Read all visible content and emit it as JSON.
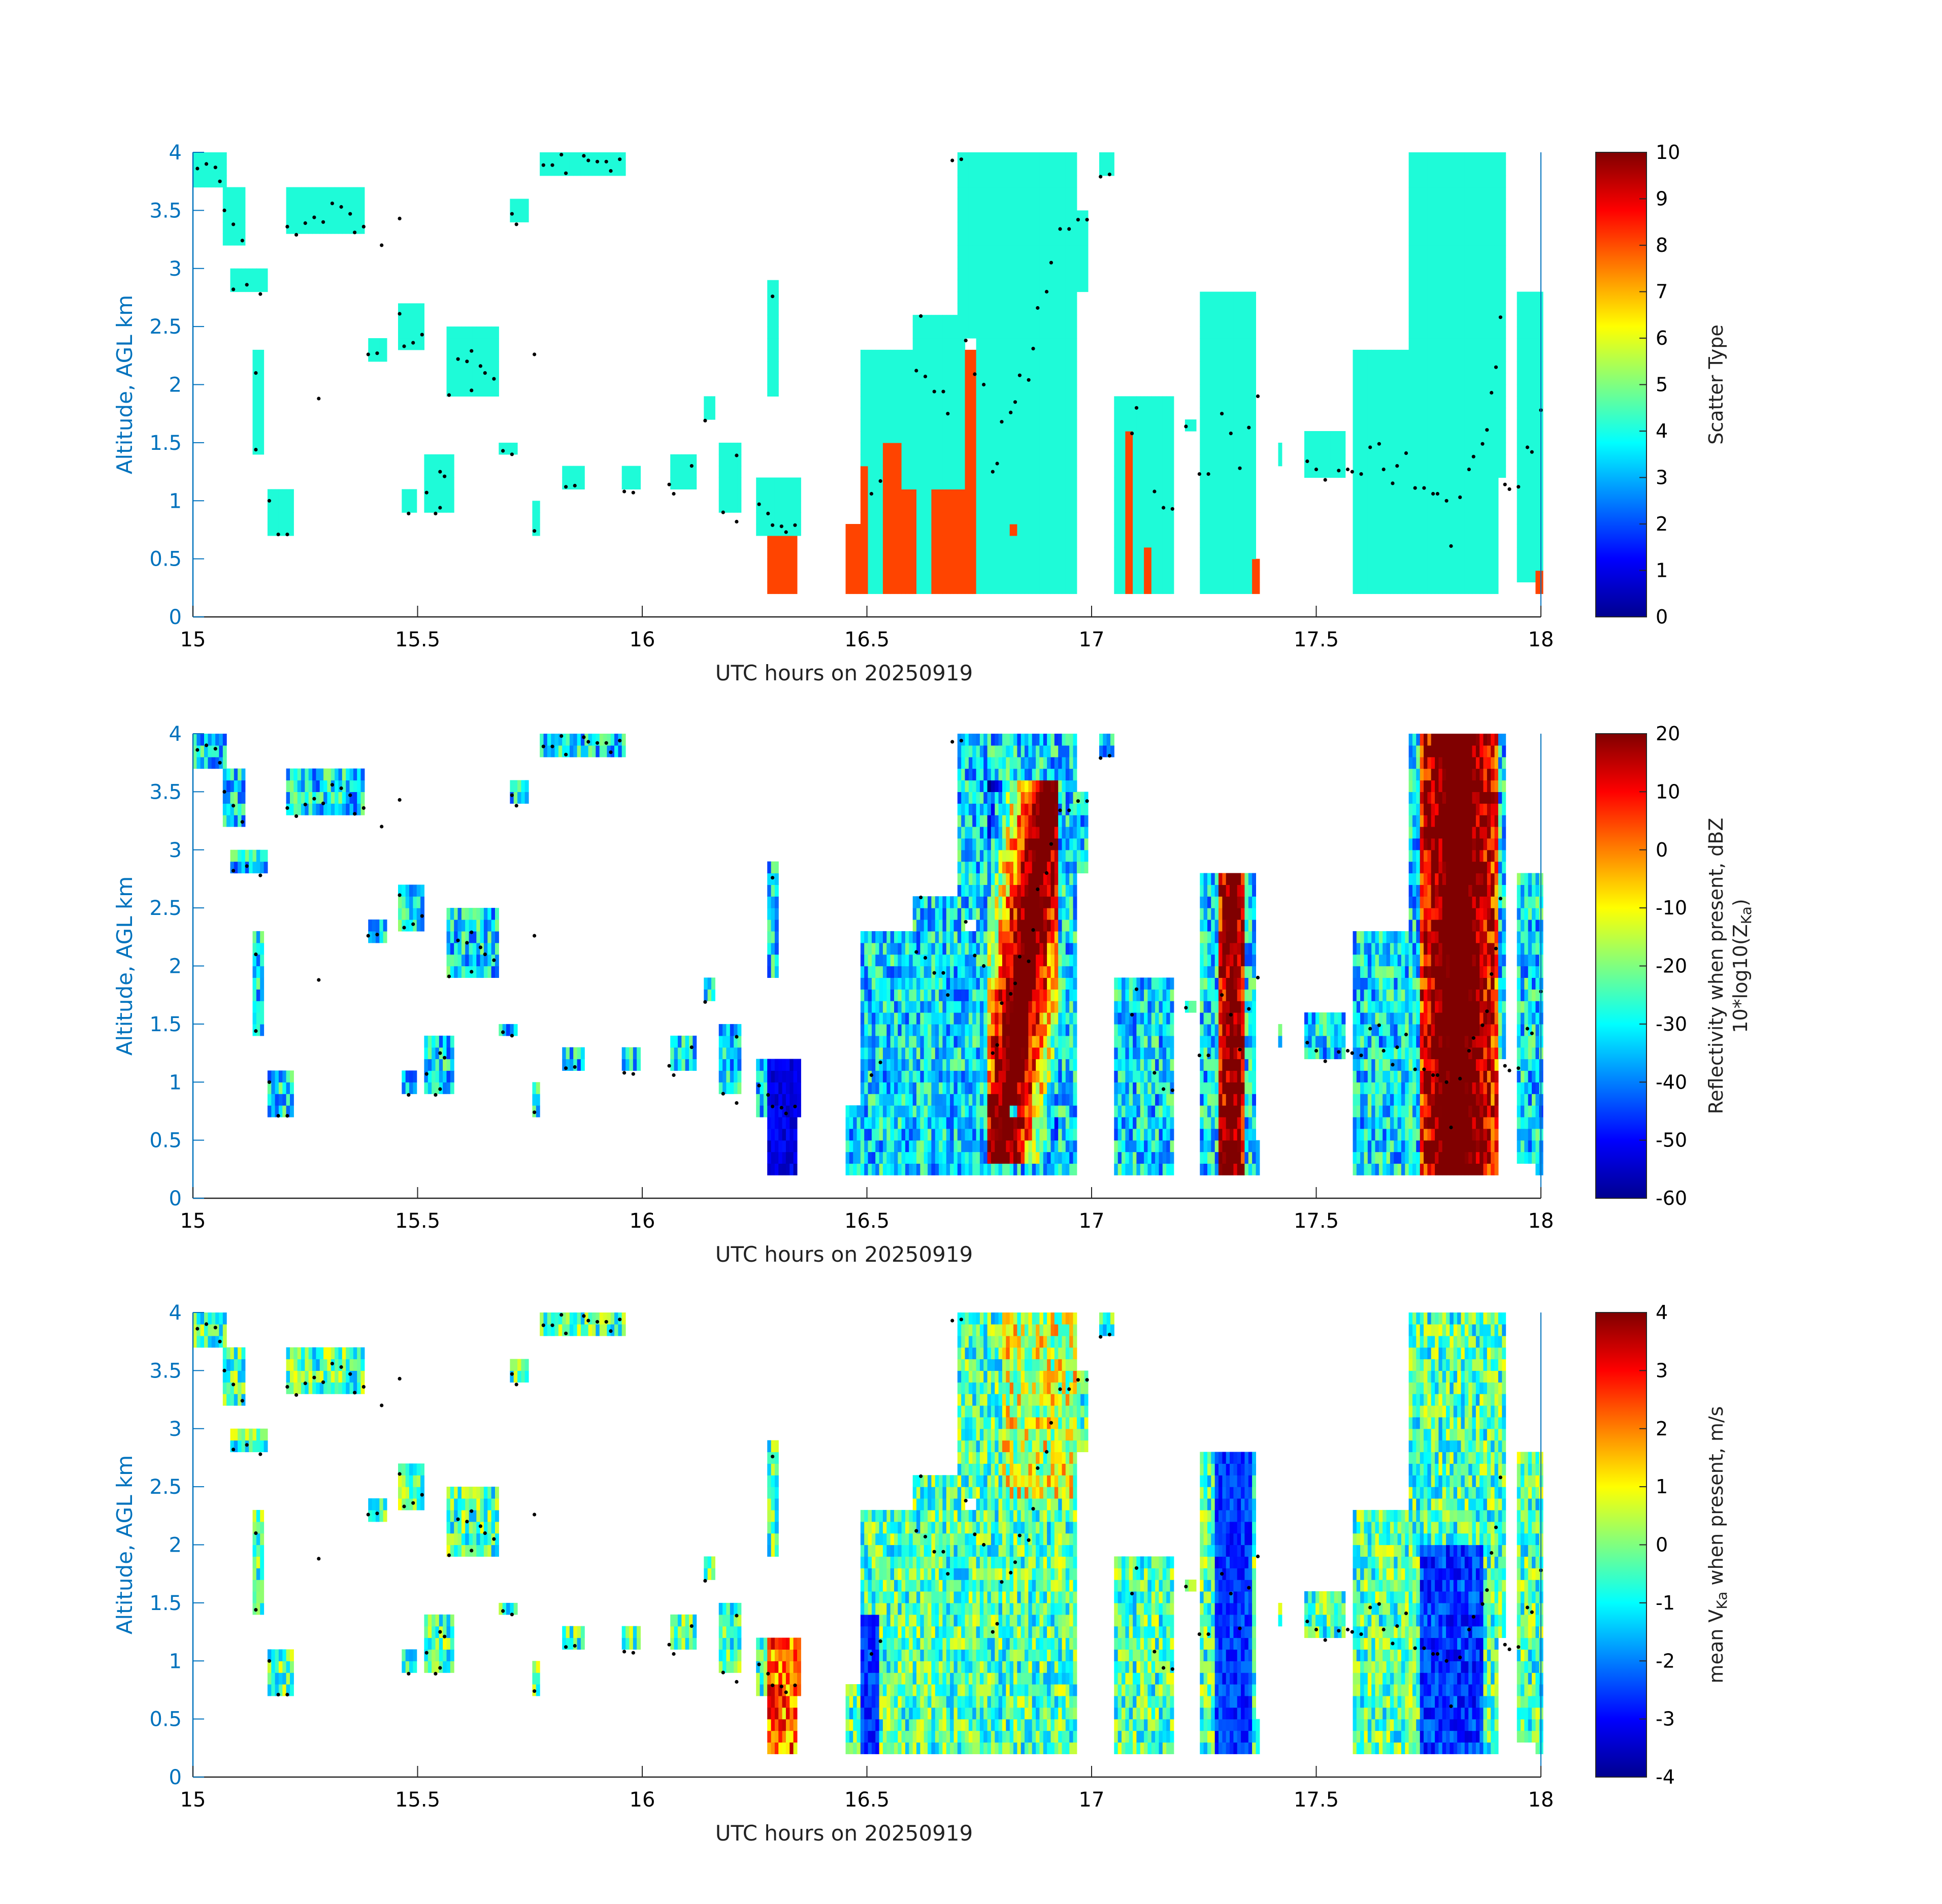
{
  "chart_data": [
    {
      "type": "heatmap",
      "xlabel": "UTC hours on 20250919",
      "ylabel": "Altitude, AGL km",
      "xlim": [
        15,
        18
      ],
      "ylim": [
        0,
        4
      ],
      "xticks": [
        "15",
        "15.5",
        "16",
        "16.5",
        "17",
        "17.5",
        "18"
      ],
      "yticks": [
        "0",
        "0.5",
        "1",
        "1.5",
        "2",
        "2.5",
        "3",
        "3.5",
        "4"
      ],
      "colorbar": {
        "label": "Scatter Type",
        "label2": "",
        "range": [
          0,
          10
        ],
        "ticks": [
          "0",
          "1",
          "2",
          "3",
          "4",
          "5",
          "6",
          "7",
          "8",
          "9",
          "10"
        ]
      },
      "field": "scatter"
    },
    {
      "type": "heatmap",
      "xlabel": "UTC hours on 20250919",
      "ylabel": "Altitude, AGL km",
      "xlim": [
        15,
        18
      ],
      "ylim": [
        0,
        4
      ],
      "xticks": [
        "15",
        "15.5",
        "16",
        "16.5",
        "17",
        "17.5",
        "18"
      ],
      "yticks": [
        "0",
        "0.5",
        "1",
        "1.5",
        "2",
        "2.5",
        "3",
        "3.5",
        "4"
      ],
      "colorbar": {
        "label": "Reflectivity when present, dBZ",
        "label2": "10*log10(Z",
        "label2_sub": "Ka",
        "label2_end": ")",
        "range": [
          -60,
          20
        ],
        "ticks": [
          "-60",
          "-50",
          "-40",
          "-30",
          "-20",
          "-10",
          "0",
          "10",
          "20"
        ]
      },
      "field": "reflectivity"
    },
    {
      "type": "heatmap",
      "xlabel": "UTC hours on 20250919",
      "ylabel": "Altitude, AGL km",
      "xlim": [
        15,
        18
      ],
      "ylim": [
        0,
        4
      ],
      "xticks": [
        "15",
        "15.5",
        "16",
        "16.5",
        "17",
        "17.5",
        "18"
      ],
      "yticks": [
        "0",
        "0.5",
        "1",
        "1.5",
        "2",
        "2.5",
        "3",
        "3.5",
        "4"
      ],
      "colorbar": {
        "label": "mean V",
        "label_sub": "Ka",
        "label_end": " when present, m/s",
        "range": [
          -4,
          4
        ],
        "ticks": [
          "-4",
          "-3",
          "-2",
          "-1",
          "0",
          "1",
          "2",
          "3",
          "4"
        ]
      },
      "field": "velocity"
    }
  ],
  "scatter_points": [
    [
      15.01,
      3.86
    ],
    [
      15.03,
      3.9
    ],
    [
      15.05,
      3.87
    ],
    [
      15.06,
      3.75
    ],
    [
      15.07,
      3.5
    ],
    [
      15.09,
      3.38
    ],
    [
      15.11,
      3.24
    ],
    [
      15.09,
      2.82
    ],
    [
      15.12,
      2.86
    ],
    [
      15.15,
      2.78
    ],
    [
      15.14,
      2.1
    ],
    [
      15.14,
      1.44
    ],
    [
      15.17,
      1.0
    ],
    [
      15.19,
      0.71
    ],
    [
      15.21,
      0.71
    ],
    [
      15.21,
      3.36
    ],
    [
      15.23,
      3.29
    ],
    [
      15.25,
      3.39
    ],
    [
      15.27,
      3.44
    ],
    [
      15.28,
      1.88
    ],
    [
      15.29,
      3.4
    ],
    [
      15.31,
      3.56
    ],
    [
      15.33,
      3.53
    ],
    [
      15.35,
      3.47
    ],
    [
      15.36,
      3.31
    ],
    [
      15.38,
      3.36
    ],
    [
      15.39,
      2.26
    ],
    [
      15.41,
      2.27
    ],
    [
      15.42,
      3.2
    ],
    [
      15.46,
      3.43
    ],
    [
      15.46,
      2.61
    ],
    [
      15.47,
      2.33
    ],
    [
      15.48,
      0.89
    ],
    [
      15.49,
      2.36
    ],
    [
      15.51,
      2.43
    ],
    [
      15.52,
      1.07
    ],
    [
      15.54,
      0.89
    ],
    [
      15.55,
      0.94
    ],
    [
      15.55,
      1.25
    ],
    [
      15.56,
      1.21
    ],
    [
      15.57,
      1.91
    ],
    [
      15.59,
      2.22
    ],
    [
      15.61,
      2.2
    ],
    [
      15.62,
      2.29
    ],
    [
      15.62,
      1.95
    ],
    [
      15.64,
      2.16
    ],
    [
      15.65,
      2.1
    ],
    [
      15.67,
      2.05
    ],
    [
      15.69,
      1.43
    ],
    [
      15.71,
      1.4
    ],
    [
      15.71,
      3.47
    ],
    [
      15.72,
      3.38
    ],
    [
      15.76,
      2.26
    ],
    [
      15.76,
      0.74
    ],
    [
      15.78,
      3.89
    ],
    [
      15.8,
      3.89
    ],
    [
      15.82,
      3.98
    ],
    [
      15.83,
      3.82
    ],
    [
      15.83,
      1.12
    ],
    [
      15.85,
      1.13
    ],
    [
      15.87,
      3.97
    ],
    [
      15.88,
      3.93
    ],
    [
      15.9,
      3.92
    ],
    [
      15.92,
      3.92
    ],
    [
      15.93,
      3.84
    ],
    [
      15.95,
      3.94
    ],
    [
      15.96,
      1.08
    ],
    [
      15.98,
      1.07
    ],
    [
      16.06,
      1.14
    ],
    [
      16.07,
      1.06
    ],
    [
      16.11,
      1.3
    ],
    [
      16.14,
      1.69
    ],
    [
      16.18,
      0.9
    ],
    [
      16.21,
      0.82
    ],
    [
      16.21,
      1.39
    ],
    [
      16.26,
      0.97
    ],
    [
      16.28,
      0.89
    ],
    [
      16.29,
      0.79
    ],
    [
      16.29,
      2.76
    ],
    [
      16.31,
      0.78
    ],
    [
      16.32,
      0.73
    ],
    [
      16.34,
      0.79
    ],
    [
      16.51,
      1.06
    ],
    [
      16.53,
      1.17
    ],
    [
      16.61,
      2.12
    ],
    [
      16.62,
      2.59
    ],
    [
      16.63,
      2.07
    ],
    [
      16.65,
      1.94
    ],
    [
      16.67,
      1.94
    ],
    [
      16.68,
      1.75
    ],
    [
      16.69,
      3.93
    ],
    [
      16.71,
      3.94
    ],
    [
      16.72,
      2.38
    ],
    [
      16.74,
      2.09
    ],
    [
      16.76,
      2.0
    ],
    [
      16.78,
      1.25
    ],
    [
      16.79,
      1.32
    ],
    [
      16.8,
      1.68
    ],
    [
      16.82,
      1.76
    ],
    [
      16.83,
      1.85
    ],
    [
      16.84,
      2.08
    ],
    [
      16.86,
      2.04
    ],
    [
      16.87,
      2.31
    ],
    [
      16.88,
      2.66
    ],
    [
      16.9,
      2.8
    ],
    [
      16.91,
      3.05
    ],
    [
      16.93,
      3.34
    ],
    [
      16.95,
      3.34
    ],
    [
      16.97,
      3.42
    ],
    [
      16.99,
      3.42
    ],
    [
      17.02,
      3.79
    ],
    [
      17.04,
      3.81
    ],
    [
      17.09,
      1.58
    ],
    [
      17.1,
      1.8
    ],
    [
      17.14,
      1.08
    ],
    [
      17.16,
      0.94
    ],
    [
      17.18,
      0.93
    ],
    [
      17.21,
      1.64
    ],
    [
      17.24,
      1.23
    ],
    [
      17.26,
      1.23
    ],
    [
      17.29,
      1.75
    ],
    [
      17.31,
      1.58
    ],
    [
      17.33,
      1.28
    ],
    [
      17.35,
      1.63
    ],
    [
      17.37,
      1.9
    ],
    [
      17.48,
      1.34
    ],
    [
      17.5,
      1.27
    ],
    [
      17.52,
      1.18
    ],
    [
      17.55,
      1.26
    ],
    [
      17.57,
      1.27
    ],
    [
      17.58,
      1.25
    ],
    [
      17.6,
      1.23
    ],
    [
      17.62,
      1.46
    ],
    [
      17.64,
      1.49
    ],
    [
      17.65,
      1.27
    ],
    [
      17.67,
      1.15
    ],
    [
      17.68,
      1.3
    ],
    [
      17.7,
      1.41
    ],
    [
      17.72,
      1.11
    ],
    [
      17.74,
      1.11
    ],
    [
      17.76,
      1.06
    ],
    [
      17.77,
      1.06
    ],
    [
      17.79,
      1.0
    ],
    [
      17.8,
      0.61
    ],
    [
      17.82,
      1.03
    ],
    [
      17.84,
      1.27
    ],
    [
      17.85,
      1.38
    ],
    [
      17.87,
      1.49
    ],
    [
      17.88,
      1.61
    ],
    [
      17.89,
      1.93
    ],
    [
      17.9,
      2.15
    ],
    [
      17.91,
      2.58
    ],
    [
      17.92,
      1.14
    ],
    [
      17.93,
      1.1
    ],
    [
      17.95,
      1.12
    ],
    [
      17.97,
      1.46
    ],
    [
      17.98,
      1.42
    ],
    [
      18.0,
      1.78
    ],
    [
      18.01,
      1.73
    ]
  ],
  "colors": {
    "scatter_cloud": "#1efbd8",
    "scatter_precip": "#ff4400",
    "axis_blue": "#0072BD",
    "dot": "#000000"
  }
}
